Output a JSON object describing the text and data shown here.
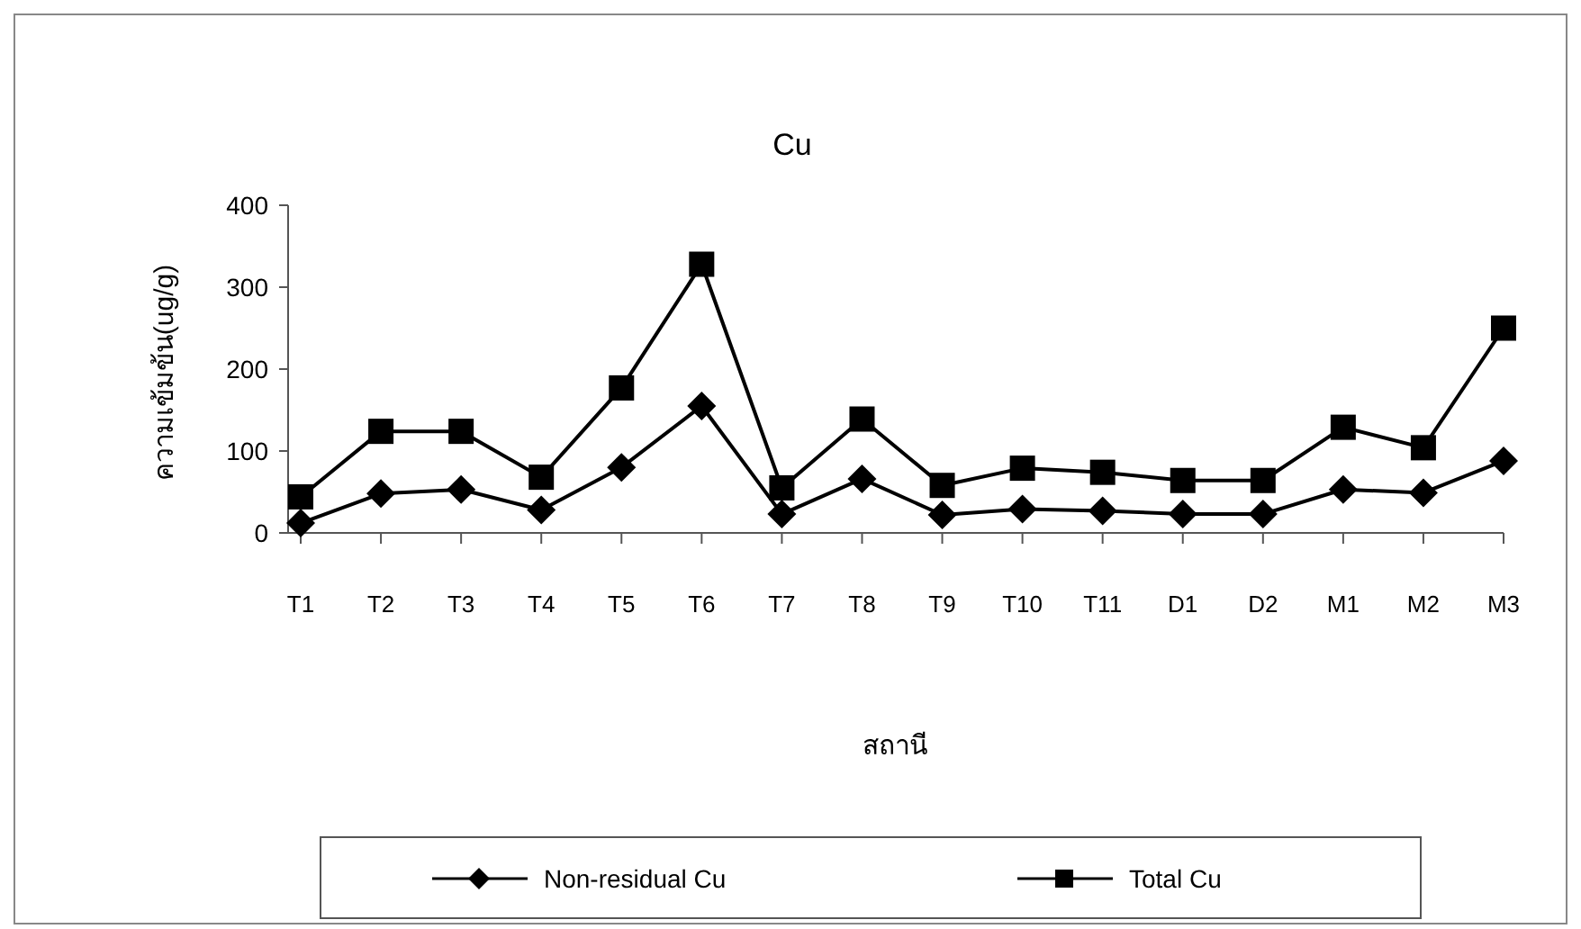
{
  "chart_data": {
    "type": "line",
    "title": "Cu",
    "xlabel": "สถานี",
    "ylabel": "ความเข้มข้น(ug/g)",
    "categories": [
      "T1",
      "T2",
      "T3",
      "T4",
      "T5",
      "T6",
      "T7",
      "T8",
      "T9",
      "T10",
      "T11",
      "D1",
      "D2",
      "M1",
      "M2",
      "M3"
    ],
    "series": [
      {
        "name": "Non-residual Cu",
        "color": "#000000",
        "marker": "diamond",
        "values": [
          12,
          48,
          53,
          28,
          80,
          155,
          23,
          66,
          22,
          29,
          27,
          23,
          23,
          53,
          49,
          88
        ]
      },
      {
        "name": "Total Cu",
        "color": "#000000",
        "marker": "square",
        "values": [
          44,
          124,
          124,
          68,
          177,
          328,
          55,
          139,
          58,
          79,
          74,
          64,
          64,
          129,
          104,
          250
        ]
      }
    ],
    "ylim": [
      0,
      400
    ],
    "yticks": [
      0,
      100,
      200,
      300,
      400
    ],
    "grid": false,
    "legend": "bottom",
    "line_style": "solid"
  }
}
